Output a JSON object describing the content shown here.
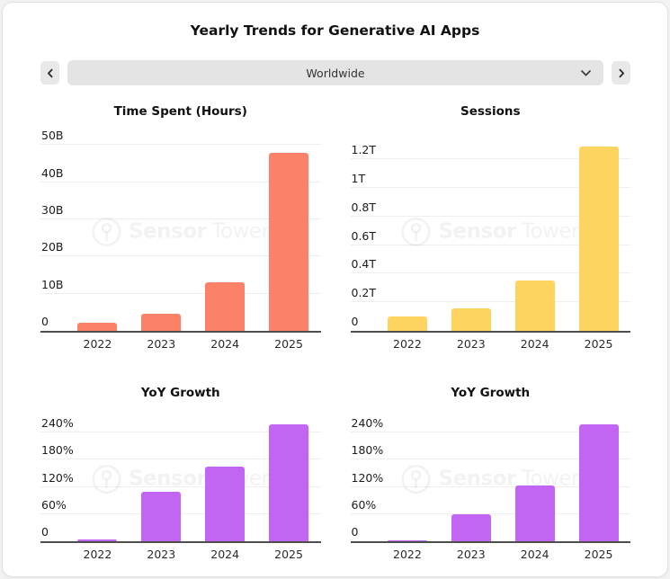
{
  "header": {
    "title": "Yearly Trends for Generative AI Apps"
  },
  "controls": {
    "selected_region": "Worldwide",
    "prev_icon": "chevron-left",
    "next_icon": "chevron-right",
    "dropdown_icon": "chevron-down"
  },
  "watermark": {
    "icon": "sensor-tower-logo",
    "bold": "Sensor",
    "light": "Tower"
  },
  "chart_data": [
    {
      "type": "bar",
      "title": "Time Spent (Hours)",
      "categories": [
        "2022",
        "2023",
        "2024",
        "2025"
      ],
      "values": [
        2.2,
        4.7,
        13,
        48
      ],
      "yticks": [
        {
          "value": 0,
          "label": "0"
        },
        {
          "value": 10,
          "label": "10B"
        },
        {
          "value": 20,
          "label": "20B"
        },
        {
          "value": 30,
          "label": "30B"
        },
        {
          "value": 40,
          "label": "40B"
        },
        {
          "value": 50,
          "label": "50B"
        }
      ],
      "ylim": [
        0,
        53.5
      ],
      "grid": true,
      "color": "#FB8268"
    },
    {
      "type": "bar",
      "title": "Sessions",
      "categories": [
        "2022",
        "2023",
        "2024",
        "2025"
      ],
      "values": [
        0.1,
        0.155,
        0.35,
        1.29
      ],
      "yticks": [
        {
          "value": 0,
          "label": "0"
        },
        {
          "value": 0.2,
          "label": "0.2T"
        },
        {
          "value": 0.4,
          "label": "0.4T"
        },
        {
          "value": 0.6,
          "label": "0.6T"
        },
        {
          "value": 0.8,
          "label": "0.8T"
        },
        {
          "value": 1.0,
          "label": "1T"
        },
        {
          "value": 1.2,
          "label": "1.2T"
        }
      ],
      "ylim": [
        0,
        1.39
      ],
      "grid": true,
      "color": "#FCD45F"
    },
    {
      "type": "bar",
      "title": "YoY Growth",
      "categories": [
        "2022",
        "2023",
        "2024",
        "2025"
      ],
      "values": [
        4,
        110,
        165,
        258
      ],
      "yticks": [
        {
          "value": 0,
          "label": "0"
        },
        {
          "value": 60,
          "label": "60%"
        },
        {
          "value": 120,
          "label": "120%"
        },
        {
          "value": 180,
          "label": "180%"
        },
        {
          "value": 240,
          "label": "240%"
        }
      ],
      "ylim": [
        0,
        274
      ],
      "grid": true,
      "color": "#C265F2"
    },
    {
      "type": "bar",
      "title": "YoY Growth",
      "categories": [
        "2022",
        "2023",
        "2024",
        "2025"
      ],
      "values": [
        3,
        59,
        124,
        258
      ],
      "yticks": [
        {
          "value": 0,
          "label": "0"
        },
        {
          "value": 60,
          "label": "60%"
        },
        {
          "value": 120,
          "label": "120%"
        },
        {
          "value": 180,
          "label": "180%"
        },
        {
          "value": 240,
          "label": "240%"
        }
      ],
      "ylim": [
        0,
        274
      ],
      "grid": true,
      "color": "#C265F2"
    }
  ]
}
